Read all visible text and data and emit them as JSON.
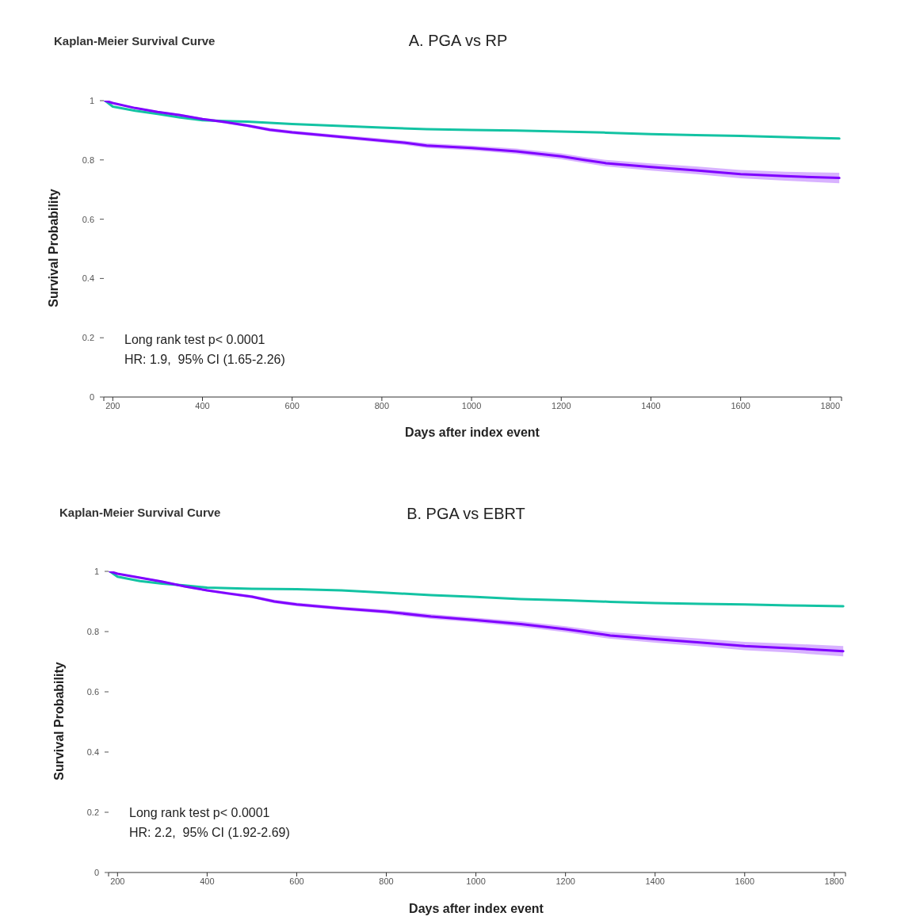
{
  "chart_data": [
    {
      "type": "line",
      "title": "Kaplan-Meier Survival Curve",
      "subtitle": "A. PGA vs RP",
      "xlabel": "Days after index event",
      "ylabel": "Survival Probability",
      "annotations": [
        "Long rank test p< 0.0001",
        "HR: 1.9,  95% CI (1.65-2.26)"
      ],
      "xlim": [
        180,
        1825
      ],
      "xticks": [
        200,
        400,
        600,
        800,
        1000,
        1200,
        1400,
        1600,
        1800
      ],
      "ylim": [
        0,
        1
      ],
      "yticks": [
        0,
        0.2,
        0.4,
        0.6,
        0.8,
        1
      ],
      "marker": "none",
      "series": [
        {
          "color": "#13c3a3",
          "x": [
            183,
            200,
            250,
            300,
            350,
            400,
            450,
            500,
            600,
            700,
            800,
            900,
            1000,
            1100,
            1200,
            1300,
            1400,
            1500,
            1600,
            1700,
            1820
          ],
          "values": [
            1.0,
            0.98,
            0.966,
            0.955,
            0.943,
            0.934,
            0.931,
            0.929,
            0.921,
            0.915,
            0.909,
            0.904,
            0.901,
            0.899,
            0.896,
            0.892,
            0.887,
            0.884,
            0.881,
            0.877,
            0.872
          ]
        },
        {
          "color": "#7f00ff",
          "x": [
            183,
            200,
            250,
            300,
            350,
            400,
            450,
            500,
            550,
            600,
            700,
            800,
            850,
            900,
            1000,
            1100,
            1200,
            1250,
            1300,
            1400,
            1500,
            1600,
            1700,
            1820
          ],
          "values": [
            1.0,
            0.992,
            0.975,
            0.962,
            0.951,
            0.938,
            0.928,
            0.916,
            0.902,
            0.893,
            0.879,
            0.865,
            0.858,
            0.848,
            0.84,
            0.829,
            0.812,
            0.8,
            0.789,
            0.776,
            0.765,
            0.752,
            0.745,
            0.739
          ],
          "lower": [
            1.0,
            0.99,
            0.972,
            0.959,
            0.947,
            0.934,
            0.923,
            0.911,
            0.896,
            0.887,
            0.873,
            0.858,
            0.851,
            0.84,
            0.832,
            0.82,
            0.802,
            0.79,
            0.778,
            0.764,
            0.752,
            0.738,
            0.73,
            0.721
          ],
          "upper": [
            1.0,
            0.994,
            0.978,
            0.965,
            0.955,
            0.942,
            0.933,
            0.921,
            0.908,
            0.899,
            0.885,
            0.872,
            0.865,
            0.856,
            0.848,
            0.838,
            0.822,
            0.81,
            0.8,
            0.788,
            0.778,
            0.766,
            0.76,
            0.757
          ]
        }
      ]
    },
    {
      "type": "line",
      "title": "Kaplan-Meier Survival Curve",
      "subtitle": "B. PGA vs EBRT",
      "xlabel": "Days after index event",
      "ylabel": "Survival Probability",
      "annotations": [
        "Long rank test p< 0.0001",
        "HR: 2.2,  95% CI (1.92-2.69)"
      ],
      "xlim": [
        180,
        1825
      ],
      "xticks": [
        200,
        400,
        600,
        800,
        1000,
        1200,
        1400,
        1600,
        1800
      ],
      "ylim": [
        0,
        1
      ],
      "yticks": [
        0,
        0.2,
        0.4,
        0.6,
        0.8,
        1
      ],
      "marker": "none",
      "series": [
        {
          "color": "#13c3a3",
          "x": [
            183,
            200,
            250,
            300,
            350,
            400,
            500,
            600,
            700,
            800,
            900,
            1000,
            1100,
            1200,
            1300,
            1400,
            1500,
            1600,
            1700,
            1820
          ],
          "values": [
            1.0,
            0.982,
            0.968,
            0.959,
            0.953,
            0.946,
            0.942,
            0.941,
            0.937,
            0.929,
            0.921,
            0.915,
            0.908,
            0.904,
            0.899,
            0.895,
            0.892,
            0.89,
            0.887,
            0.884
          ]
        },
        {
          "color": "#7f00ff",
          "x": [
            183,
            200,
            250,
            300,
            350,
            400,
            450,
            500,
            550,
            600,
            700,
            800,
            900,
            1000,
            1100,
            1200,
            1300,
            1400,
            1500,
            1600,
            1700,
            1820
          ],
          "values": [
            1.0,
            0.992,
            0.979,
            0.966,
            0.95,
            0.937,
            0.926,
            0.916,
            0.9,
            0.89,
            0.877,
            0.866,
            0.85,
            0.838,
            0.825,
            0.808,
            0.787,
            0.775,
            0.764,
            0.752,
            0.745,
            0.735
          ],
          "lower": [
            1.0,
            0.99,
            0.976,
            0.963,
            0.946,
            0.933,
            0.921,
            0.911,
            0.894,
            0.884,
            0.871,
            0.859,
            0.842,
            0.83,
            0.816,
            0.798,
            0.776,
            0.763,
            0.751,
            0.738,
            0.73,
            0.718
          ],
          "upper": [
            1.0,
            0.994,
            0.982,
            0.969,
            0.954,
            0.941,
            0.931,
            0.921,
            0.906,
            0.896,
            0.883,
            0.873,
            0.858,
            0.846,
            0.834,
            0.818,
            0.798,
            0.787,
            0.777,
            0.766,
            0.76,
            0.752
          ]
        }
      ]
    }
  ]
}
